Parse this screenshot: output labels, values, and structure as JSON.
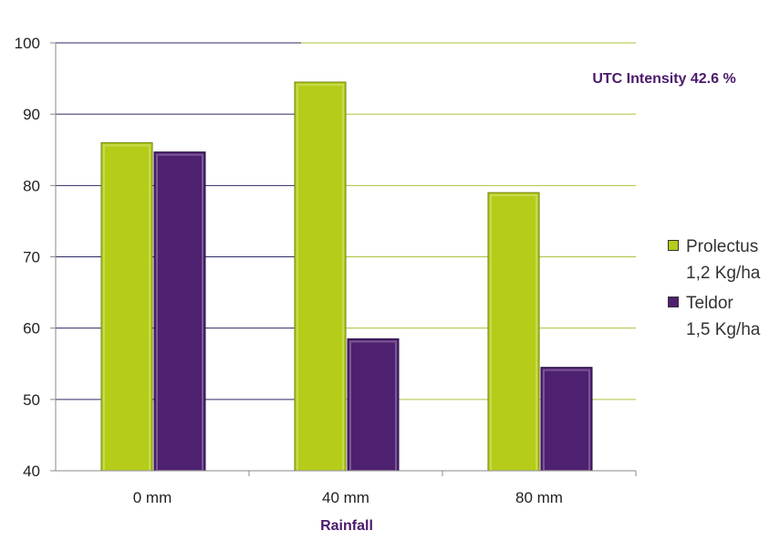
{
  "colors": {
    "prolectus": "#b5cc18",
    "teldor": "#4e2070",
    "purple_text": "#4a1a6b",
    "grid_green": "#a8c43a",
    "grid_navy": "#2b2a66"
  },
  "chart_data": {
    "type": "bar",
    "categories": [
      "0 mm",
      "40 mm",
      "80 mm"
    ],
    "series": [
      {
        "name": "Prolectus 1,2 Kg/ha",
        "line1": "Prolectus",
        "line2": "1,2 Kg/ha",
        "values": [
          86,
          94.5,
          79
        ]
      },
      {
        "name": "Teldor 1,5 Kg/ha",
        "line1": "Teldor",
        "line2": "1,5 Kg/ha",
        "values": [
          84.7,
          58.5,
          54.5
        ]
      }
    ],
    "xlabel": "Rainfall",
    "ylabel": "",
    "ylim": [
      40,
      100
    ],
    "yticks": [
      40,
      50,
      60,
      70,
      80,
      90,
      100
    ],
    "grid": true,
    "legend": "right",
    "annotation": "UTC Intensity  42.6 %"
  }
}
